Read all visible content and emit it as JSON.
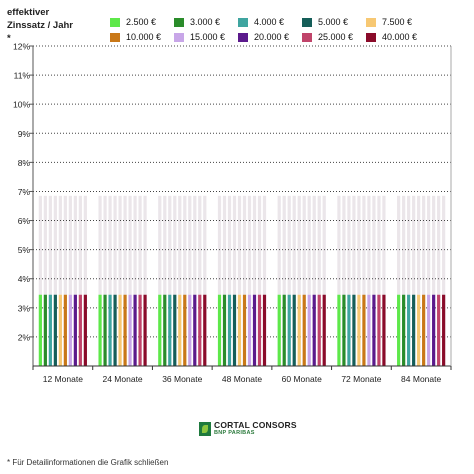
{
  "chart_data": {
    "type": "bar",
    "ylabel": [
      "effektiver",
      "Zinssatz / Jahr *"
    ],
    "yticks": [
      "2%",
      "3%",
      "4%",
      "5%",
      "6%",
      "7%",
      "8%",
      "9%",
      "10%",
      "11%",
      "12%"
    ],
    "ylim": [
      1,
      12
    ],
    "categories": [
      "12 Monate",
      "24 Monate",
      "36 Monate",
      "48 Monate",
      "60 Monate",
      "72 Monate",
      "84 Monate"
    ],
    "legend_position": "top",
    "upper_band": 6.85,
    "series": [
      {
        "name": "2.500 €",
        "color": "#5ee84a",
        "values": [
          3.45,
          3.45,
          3.45,
          3.45,
          3.45,
          3.45,
          3.45
        ]
      },
      {
        "name": "3.000 €",
        "color": "#2a8c2a",
        "values": [
          3.45,
          3.45,
          3.45,
          3.45,
          3.45,
          3.45,
          3.45
        ]
      },
      {
        "name": "4.000 €",
        "color": "#3fa5a0",
        "values": [
          3.45,
          3.45,
          3.45,
          3.45,
          3.45,
          3.45,
          3.45
        ]
      },
      {
        "name": "5.000 €",
        "color": "#155e59",
        "values": [
          3.45,
          3.45,
          3.45,
          3.45,
          3.45,
          3.45,
          3.45
        ]
      },
      {
        "name": "7.500 €",
        "color": "#f7c873",
        "values": [
          3.45,
          3.45,
          3.45,
          3.45,
          3.45,
          3.45,
          3.45
        ]
      },
      {
        "name": "10.000 €",
        "color": "#c97818",
        "values": [
          3.45,
          3.45,
          3.45,
          3.45,
          3.45,
          3.45,
          3.45
        ]
      },
      {
        "name": "15.000 €",
        "color": "#c8a6e8",
        "values": [
          3.45,
          3.45,
          3.45,
          3.45,
          3.45,
          3.45,
          3.45
        ]
      },
      {
        "name": "20.000 €",
        "color": "#5b1a8c",
        "values": [
          3.45,
          3.45,
          3.45,
          3.45,
          3.45,
          3.45,
          3.45
        ]
      },
      {
        "name": "25.000 €",
        "color": "#c0446a",
        "values": [
          3.45,
          3.45,
          3.45,
          3.45,
          3.45,
          3.45,
          3.45
        ]
      },
      {
        "name": "40.000 €",
        "color": "#8a0b2a",
        "values": [
          3.45,
          3.45,
          3.45,
          3.45,
          3.45,
          3.45,
          3.45
        ]
      }
    ]
  },
  "logo": {
    "line1": "CORTAL CONSORS",
    "line2": "BNP PARIBAS"
  },
  "footnote": "* Für Detailinformationen die Grafik schließen"
}
